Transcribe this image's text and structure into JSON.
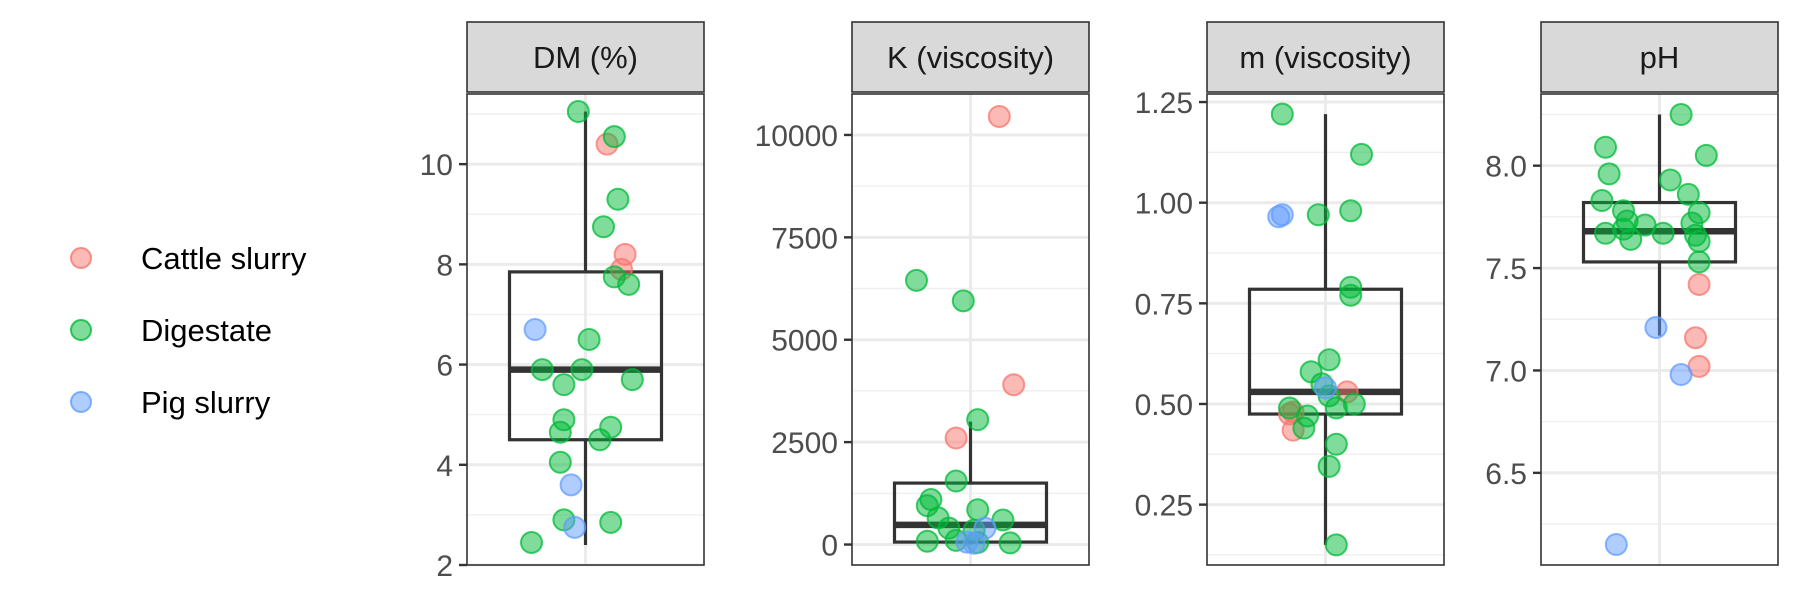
{
  "legend": {
    "items": [
      {
        "label": "Cattle slurry",
        "color": "#F8766D"
      },
      {
        "label": "Digestate",
        "color": "#00BA38"
      },
      {
        "label": "Pig slurry",
        "color": "#619CFF"
      }
    ]
  },
  "chart_data": [
    {
      "type": "boxplot",
      "title": "DM (%)",
      "ylim": [
        2,
        11.4
      ],
      "yticks": [
        2,
        4,
        6,
        8,
        10
      ],
      "yticklabels": [
        "2",
        "4",
        "6",
        "8",
        "10"
      ],
      "grid": true,
      "box": {
        "q1": 4.5,
        "median": 5.9,
        "q3": 7.85,
        "whisker_low": 2.4,
        "whisker_high": 11.05
      },
      "points": [
        {
          "group": "Cattle slurry",
          "jitter": 0.3,
          "y": 10.4
        },
        {
          "group": "Cattle slurry",
          "jitter": 0.55,
          "y": 8.2
        },
        {
          "group": "Cattle slurry",
          "jitter": 0.5,
          "y": 7.9
        },
        {
          "group": "Digestate",
          "jitter": -0.1,
          "y": 11.05
        },
        {
          "group": "Digestate",
          "jitter": 0.4,
          "y": 10.55
        },
        {
          "group": "Digestate",
          "jitter": 0.45,
          "y": 9.3
        },
        {
          "group": "Digestate",
          "jitter": 0.25,
          "y": 8.75
        },
        {
          "group": "Digestate",
          "jitter": 0.4,
          "y": 7.75
        },
        {
          "group": "Digestate",
          "jitter": 0.6,
          "y": 7.6
        },
        {
          "group": "Digestate",
          "jitter": 0.05,
          "y": 6.5
        },
        {
          "group": "Digestate",
          "jitter": -0.6,
          "y": 5.9
        },
        {
          "group": "Digestate",
          "jitter": -0.05,
          "y": 5.9
        },
        {
          "group": "Digestate",
          "jitter": 0.65,
          "y": 5.7
        },
        {
          "group": "Digestate",
          "jitter": -0.3,
          "y": 5.6
        },
        {
          "group": "Digestate",
          "jitter": -0.3,
          "y": 4.9
        },
        {
          "group": "Digestate",
          "jitter": 0.35,
          "y": 4.75
        },
        {
          "group": "Digestate",
          "jitter": -0.35,
          "y": 4.65
        },
        {
          "group": "Digestate",
          "jitter": 0.2,
          "y": 4.5
        },
        {
          "group": "Digestate",
          "jitter": -0.35,
          "y": 4.05
        },
        {
          "group": "Digestate",
          "jitter": -0.3,
          "y": 2.9
        },
        {
          "group": "Digestate",
          "jitter": 0.35,
          "y": 2.85
        },
        {
          "group": "Digestate",
          "jitter": -0.75,
          "y": 2.45
        },
        {
          "group": "Pig slurry",
          "jitter": -0.7,
          "y": 6.7
        },
        {
          "group": "Pig slurry",
          "jitter": -0.2,
          "y": 3.6
        },
        {
          "group": "Pig slurry",
          "jitter": -0.15,
          "y": 2.75
        }
      ]
    },
    {
      "type": "boxplot",
      "title": "K (viscosity)",
      "ylim": [
        -500,
        11000
      ],
      "yticks": [
        0,
        2500,
        5000,
        7500,
        10000
      ],
      "yticklabels": [
        "0",
        "2500",
        "5000",
        "7500",
        "10000"
      ],
      "grid": true,
      "box": {
        "q1": 60,
        "median": 480,
        "q3": 1500,
        "whisker_low": 0,
        "whisker_high": 3000
      },
      "points": [
        {
          "group": "Cattle slurry",
          "jitter": 0.4,
          "y": 10450
        },
        {
          "group": "Cattle slurry",
          "jitter": 0.6,
          "y": 3900
        },
        {
          "group": "Cattle slurry",
          "jitter": -0.2,
          "y": 2600
        },
        {
          "group": "Digestate",
          "jitter": -0.75,
          "y": 6450
        },
        {
          "group": "Digestate",
          "jitter": -0.1,
          "y": 5950
        },
        {
          "group": "Digestate",
          "jitter": 0.1,
          "y": 3050
        },
        {
          "group": "Digestate",
          "jitter": -0.2,
          "y": 1550
        },
        {
          "group": "Digestate",
          "jitter": -0.55,
          "y": 1100
        },
        {
          "group": "Digestate",
          "jitter": -0.6,
          "y": 950
        },
        {
          "group": "Digestate",
          "jitter": 0.1,
          "y": 850
        },
        {
          "group": "Digestate",
          "jitter": -0.45,
          "y": 650
        },
        {
          "group": "Digestate",
          "jitter": 0.45,
          "y": 600
        },
        {
          "group": "Digestate",
          "jitter": -0.3,
          "y": 400
        },
        {
          "group": "Digestate",
          "jitter": 0.05,
          "y": 350
        },
        {
          "group": "Digestate",
          "jitter": -0.6,
          "y": 80
        },
        {
          "group": "Digestate",
          "jitter": 0.1,
          "y": 50
        },
        {
          "group": "Digestate",
          "jitter": 0.55,
          "y": 40
        },
        {
          "group": "Digestate",
          "jitter": -0.2,
          "y": 100
        },
        {
          "group": "Pig slurry",
          "jitter": 0.2,
          "y": 400
        },
        {
          "group": "Pig slurry",
          "jitter": -0.05,
          "y": 60
        },
        {
          "group": "Pig slurry",
          "jitter": 0.05,
          "y": 30
        }
      ]
    },
    {
      "type": "boxplot",
      "title": "m (viscosity)",
      "ylim": [
        0.1,
        1.27
      ],
      "yticks": [
        0.25,
        0.5,
        0.75,
        1.0,
        1.25
      ],
      "yticklabels": [
        "0.25",
        "0.50",
        "0.75",
        "1.00",
        "1.25"
      ],
      "grid": true,
      "box": {
        "q1": 0.475,
        "median": 0.53,
        "q3": 0.785,
        "whisker_low": 0.15,
        "whisker_high": 1.22
      },
      "points": [
        {
          "group": "Cattle slurry",
          "jitter": -0.45,
          "y": 0.48
        },
        {
          "group": "Cattle slurry",
          "jitter": -0.5,
          "y": 0.475
        },
        {
          "group": "Cattle slurry",
          "jitter": -0.45,
          "y": 0.435
        },
        {
          "group": "Cattle slurry",
          "jitter": 0.3,
          "y": 0.53
        },
        {
          "group": "Digestate",
          "jitter": -0.6,
          "y": 1.22
        },
        {
          "group": "Digestate",
          "jitter": 0.5,
          "y": 1.12
        },
        {
          "group": "Digestate",
          "jitter": 0.35,
          "y": 0.98
        },
        {
          "group": "Digestate",
          "jitter": -0.1,
          "y": 0.97
        },
        {
          "group": "Digestate",
          "jitter": 0.35,
          "y": 0.79
        },
        {
          "group": "Digestate",
          "jitter": 0.35,
          "y": 0.77
        },
        {
          "group": "Digestate",
          "jitter": 0.05,
          "y": 0.61
        },
        {
          "group": "Digestate",
          "jitter": -0.2,
          "y": 0.58
        },
        {
          "group": "Digestate",
          "jitter": -0.05,
          "y": 0.55
        },
        {
          "group": "Digestate",
          "jitter": 0.05,
          "y": 0.52
        },
        {
          "group": "Digestate",
          "jitter": 0.4,
          "y": 0.5
        },
        {
          "group": "Digestate",
          "jitter": 0.15,
          "y": 0.49
        },
        {
          "group": "Digestate",
          "jitter": -0.25,
          "y": 0.47
        },
        {
          "group": "Digestate",
          "jitter": -0.5,
          "y": 0.49
        },
        {
          "group": "Digestate",
          "jitter": -0.3,
          "y": 0.44
        },
        {
          "group": "Digestate",
          "jitter": 0.15,
          "y": 0.4
        },
        {
          "group": "Digestate",
          "jitter": 0.05,
          "y": 0.345
        },
        {
          "group": "Digestate",
          "jitter": 0.15,
          "y": 0.15
        },
        {
          "group": "Pig slurry",
          "jitter": -0.65,
          "y": 0.965
        },
        {
          "group": "Pig slurry",
          "jitter": -0.6,
          "y": 0.97
        },
        {
          "group": "Pig slurry",
          "jitter": 0.0,
          "y": 0.54
        }
      ]
    },
    {
      "type": "boxplot",
      "title": "pH",
      "ylim": [
        6.05,
        8.35
      ],
      "yticks": [
        6.5,
        7.0,
        7.5,
        8.0
      ],
      "yticklabels": [
        "6.5",
        "7.0",
        "7.5",
        "8.0"
      ],
      "grid": true,
      "box": {
        "q1": 7.53,
        "median": 7.68,
        "q3": 7.82,
        "whisker_low": 7.17,
        "whisker_high": 8.25
      },
      "points": [
        {
          "group": "Cattle slurry",
          "jitter": 0.55,
          "y": 7.42
        },
        {
          "group": "Cattle slurry",
          "jitter": 0.5,
          "y": 7.16
        },
        {
          "group": "Cattle slurry",
          "jitter": 0.55,
          "y": 7.02
        },
        {
          "group": "Digestate",
          "jitter": 0.3,
          "y": 8.25
        },
        {
          "group": "Digestate",
          "jitter": -0.75,
          "y": 8.09
        },
        {
          "group": "Digestate",
          "jitter": 0.65,
          "y": 8.05
        },
        {
          "group": "Digestate",
          "jitter": -0.7,
          "y": 7.96
        },
        {
          "group": "Digestate",
          "jitter": 0.15,
          "y": 7.93
        },
        {
          "group": "Digestate",
          "jitter": 0.4,
          "y": 7.86
        },
        {
          "group": "Digestate",
          "jitter": -0.8,
          "y": 7.83
        },
        {
          "group": "Digestate",
          "jitter": -0.5,
          "y": 7.78
        },
        {
          "group": "Digestate",
          "jitter": 0.55,
          "y": 7.77
        },
        {
          "group": "Digestate",
          "jitter": -0.45,
          "y": 7.73
        },
        {
          "group": "Digestate",
          "jitter": -0.2,
          "y": 7.71
        },
        {
          "group": "Digestate",
          "jitter": 0.45,
          "y": 7.72
        },
        {
          "group": "Digestate",
          "jitter": -0.5,
          "y": 7.69
        },
        {
          "group": "Digestate",
          "jitter": -0.75,
          "y": 7.67
        },
        {
          "group": "Digestate",
          "jitter": 0.05,
          "y": 7.67
        },
        {
          "group": "Digestate",
          "jitter": 0.5,
          "y": 7.66
        },
        {
          "group": "Digestate",
          "jitter": -0.4,
          "y": 7.64
        },
        {
          "group": "Digestate",
          "jitter": 0.55,
          "y": 7.63
        },
        {
          "group": "Digestate",
          "jitter": 0.55,
          "y": 7.53
        },
        {
          "group": "Pig slurry",
          "jitter": -0.05,
          "y": 7.21
        },
        {
          "group": "Pig slurry",
          "jitter": 0.3,
          "y": 6.98
        },
        {
          "group": "Pig slurry",
          "jitter": -0.6,
          "y": 6.15
        }
      ]
    }
  ]
}
